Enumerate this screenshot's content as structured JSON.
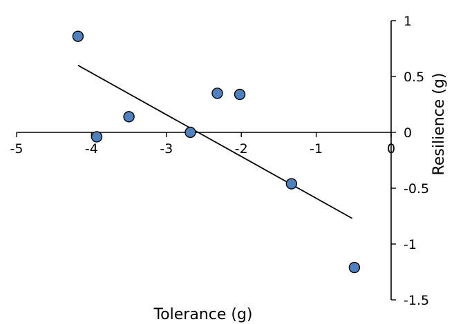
{
  "chart_data": {
    "type": "scatter",
    "title": "",
    "xlabel": "Tolerance (g)",
    "ylabel": "Resilience (g)",
    "xlim": [
      -5,
      0
    ],
    "ylim": [
      -1.5,
      1
    ],
    "x_ticks": [
      -5,
      -4,
      -3,
      -2,
      -1,
      0
    ],
    "y_ticks": [
      1,
      0.5,
      0,
      -0.5,
      -1,
      -1.5
    ],
    "x_tick_labels": [
      "-5",
      "-4",
      "-3",
      "-2",
      "-1",
      "0"
    ],
    "y_tick_labels": [
      "1",
      "0.5",
      "0",
      "-0.5",
      "-1",
      "-1.5"
    ],
    "grid": false,
    "marker_color": "#4f81bd",
    "points": [
      {
        "x": -4.18,
        "y": 0.86
      },
      {
        "x": -3.93,
        "y": -0.04
      },
      {
        "x": -3.5,
        "y": 0.14
      },
      {
        "x": -2.68,
        "y": 0.0
      },
      {
        "x": -2.32,
        "y": 0.35
      },
      {
        "x": -2.02,
        "y": 0.34
      },
      {
        "x": -1.33,
        "y": -0.46
      },
      {
        "x": -0.49,
        "y": -1.21
      }
    ],
    "trendline": {
      "x": [
        -4.18,
        -0.52
      ],
      "y": [
        0.6,
        -0.77
      ]
    }
  }
}
